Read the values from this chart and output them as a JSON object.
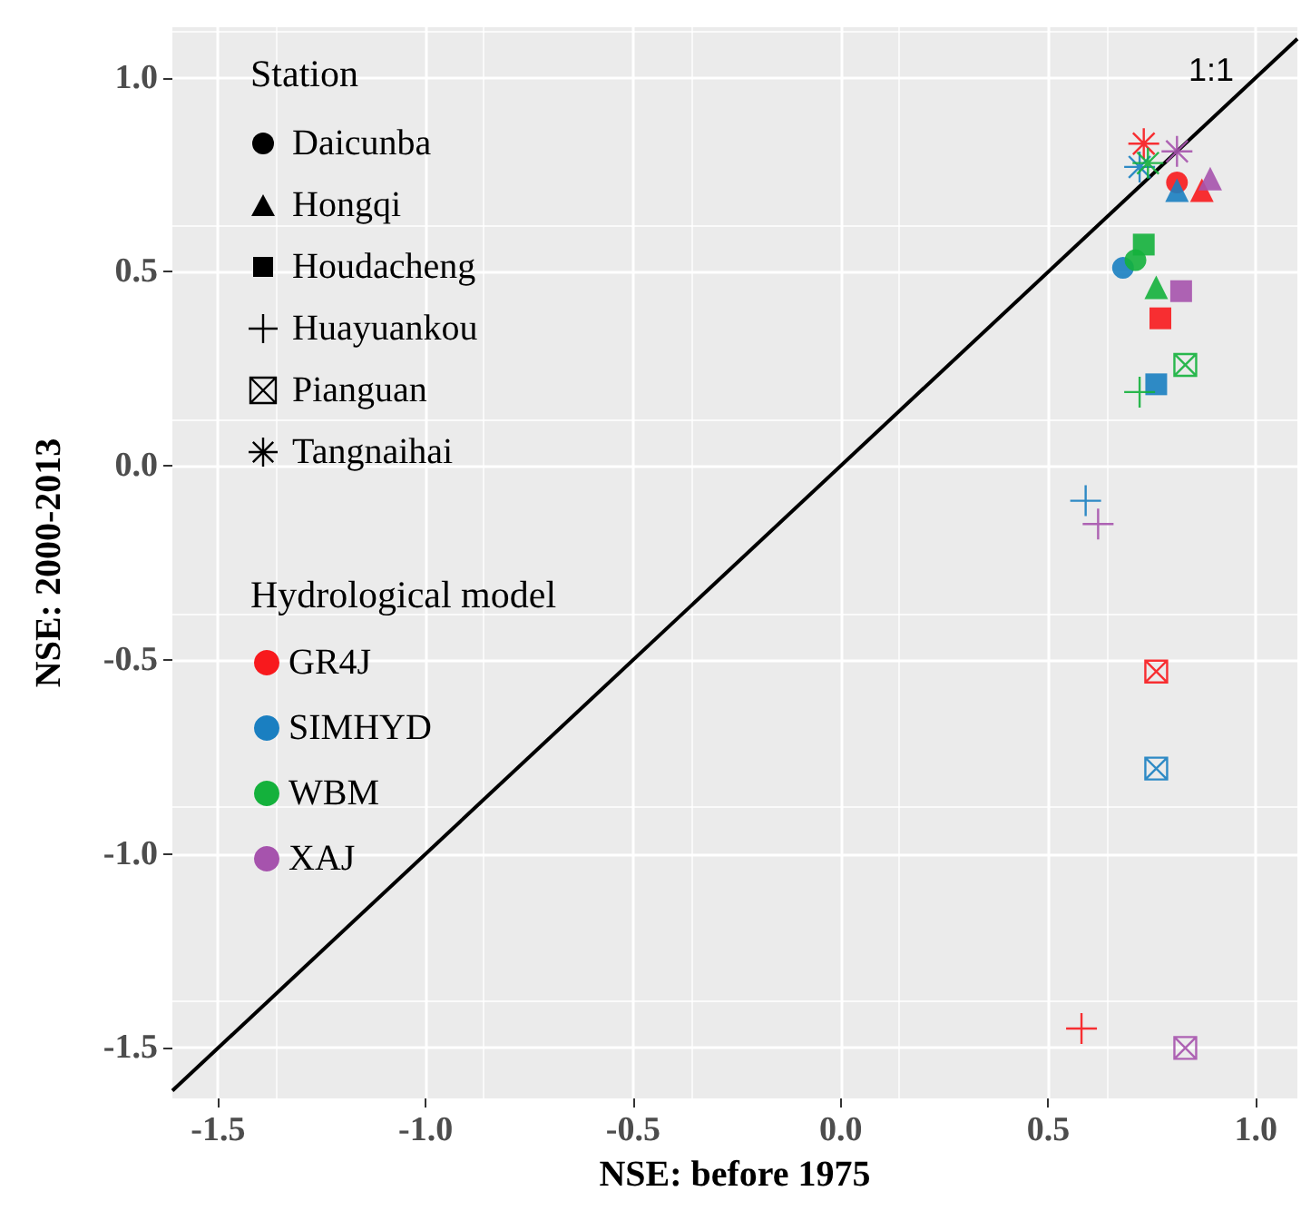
{
  "chart_data": {
    "type": "scatter",
    "xlabel": "NSE: before 1975",
    "ylabel": "NSE: 2000-2013",
    "legend_title": [
      "Station",
      "Hydrological model"
    ],
    "annotations": [
      "Daicunba",
      "Hongqi",
      "Houdacheng",
      "Huayuankou",
      "Pianguan",
      "Tangnaihai"
    ],
    "marker": [
      "circle",
      "triangle",
      "square",
      "plus",
      "boxed-x",
      "asterisk"
    ],
    "series": [
      {
        "name": "GR4J",
        "color": "#f8191d",
        "x": [
          0.81,
          0.87,
          0.77,
          0.58,
          0.76,
          0.73
        ],
        "values": [
          0.73,
          0.71,
          0.38,
          -1.45,
          -0.53,
          0.83
        ]
      },
      {
        "name": "SIMHYD",
        "color": "#1a7fc1",
        "x": [
          0.68,
          0.81,
          0.76,
          0.59,
          0.76,
          0.72
        ],
        "values": [
          0.51,
          0.71,
          0.21,
          -0.09,
          -0.78,
          0.77
        ]
      },
      {
        "name": "WBM",
        "color": "#14b13c",
        "x": [
          0.71,
          0.76,
          0.73,
          0.72,
          0.83,
          0.74
        ],
        "values": [
          0.53,
          0.46,
          0.57,
          0.19,
          0.26,
          0.78
        ]
      },
      {
        "name": "XAJ",
        "color": "#a653ad",
        "x": [
          null,
          0.89,
          0.82,
          0.62,
          0.83,
          0.81
        ],
        "values": [
          null,
          0.74,
          0.45,
          -0.15,
          -1.5,
          0.81
        ]
      },
      {
        "name": "1:1",
        "type": "line",
        "color": "#000000",
        "x": [
          -1.61,
          1.1
        ],
        "values": [
          -1.61,
          1.1
        ]
      }
    ],
    "xlim": [
      -1.61,
      1.1
    ],
    "ylim": [
      -1.63,
      1.13
    ],
    "xticks": [
      {
        "value": -1.5,
        "label": "-1.5"
      },
      {
        "value": -1,
        "label": "-1.0"
      },
      {
        "value": -0.5,
        "label": "-0.5"
      },
      {
        "value": 0,
        "label": "0.0"
      },
      {
        "value": 0.5,
        "label": "0.5"
      },
      {
        "value": 1,
        "label": "1.0"
      }
    ],
    "yticks": [
      {
        "value": -1.5,
        "label": "-1.5"
      },
      {
        "value": -1,
        "label": "-1.0"
      },
      {
        "value": -0.5,
        "label": "-0.5"
      },
      {
        "value": 0,
        "label": "0.0"
      },
      {
        "value": 0.5,
        "label": "0.5"
      },
      {
        "value": 1,
        "label": "1.0"
      }
    ],
    "grid": true,
    "legend": "left"
  }
}
